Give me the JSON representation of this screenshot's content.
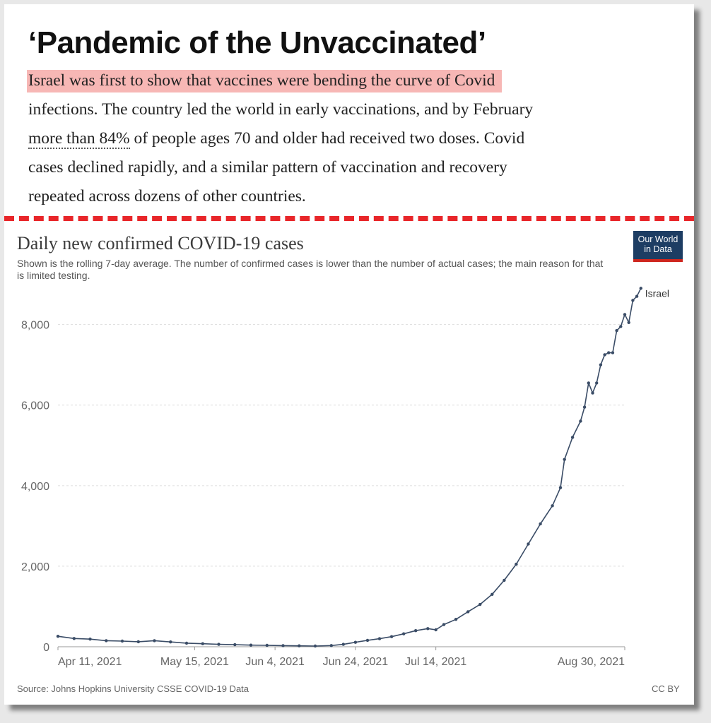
{
  "article": {
    "headline": "‘Pandemic of the Unvaccinated’",
    "lines": {
      "l1": "Israel was first to show that vaccines were bending the curve of Covid",
      "l2": "infections. The country led the world in early vaccinations, and by February",
      "l3_link": "more than 84%",
      "l3_rest": " of people ages 70 and older had received two doses. Covid",
      "l4": "cases declined rapidly, and a similar pattern of vaccination and recovery",
      "l5": "repeated across dozens of other countries."
    },
    "highlight_color": "#f7b7b5"
  },
  "divider_color": "#e8262a",
  "logo": {
    "line1": "Our World",
    "line2": "in Data",
    "bg": "#1d3d63",
    "accent": "#ce261e"
  },
  "footer": {
    "source": "Source: Johns Hopkins University CSSE COVID-19 Data",
    "license": "CC BY"
  },
  "chart_data": {
    "type": "line",
    "title": "Daily new confirmed COVID-19 cases",
    "subtitle": "Shown is the rolling 7-day average. The number of confirmed cases is lower than the number of actual cases; the main reason for that is limited testing.",
    "xlabel": "",
    "ylabel": "",
    "xlim": [
      "2021-04-11",
      "2021-08-30"
    ],
    "ylim": [
      0,
      8800
    ],
    "x_ticks": [
      {
        "date": "2021-04-11",
        "label": "Apr 11, 2021"
      },
      {
        "date": "2021-05-15",
        "label": "May 15, 2021"
      },
      {
        "date": "2021-06-04",
        "label": "Jun 4, 2021"
      },
      {
        "date": "2021-06-24",
        "label": "Jun 24, 2021"
      },
      {
        "date": "2021-07-14",
        "label": "Jul 14, 2021"
      },
      {
        "date": "2021-08-30",
        "label": "Aug 30, 2021"
      }
    ],
    "y_ticks": [
      {
        "value": 0,
        "label": "0"
      },
      {
        "value": 2000,
        "label": "2,000"
      },
      {
        "value": 4000,
        "label": "4,000"
      },
      {
        "value": 6000,
        "label": "6,000"
      },
      {
        "value": 8000,
        "label": "8,000"
      }
    ],
    "grid": "horizontal dashed",
    "color": "#3a4c66",
    "series": [
      {
        "name": "Israel",
        "points": [
          [
            "2021-04-11",
            260
          ],
          [
            "2021-04-15",
            205
          ],
          [
            "2021-04-19",
            190
          ],
          [
            "2021-04-23",
            150
          ],
          [
            "2021-04-27",
            140
          ],
          [
            "2021-05-01",
            125
          ],
          [
            "2021-05-05",
            150
          ],
          [
            "2021-05-09",
            120
          ],
          [
            "2021-05-13",
            90
          ],
          [
            "2021-05-17",
            75
          ],
          [
            "2021-05-21",
            60
          ],
          [
            "2021-05-25",
            50
          ],
          [
            "2021-05-29",
            40
          ],
          [
            "2021-06-02",
            35
          ],
          [
            "2021-06-06",
            28
          ],
          [
            "2021-06-10",
            22
          ],
          [
            "2021-06-14",
            18
          ],
          [
            "2021-06-18",
            30
          ],
          [
            "2021-06-21",
            60
          ],
          [
            "2021-06-24",
            110
          ],
          [
            "2021-06-27",
            160
          ],
          [
            "2021-06-30",
            200
          ],
          [
            "2021-07-03",
            250
          ],
          [
            "2021-07-06",
            320
          ],
          [
            "2021-07-09",
            400
          ],
          [
            "2021-07-12",
            450
          ],
          [
            "2021-07-14",
            420
          ],
          [
            "2021-07-16",
            550
          ],
          [
            "2021-07-19",
            680
          ],
          [
            "2021-07-22",
            870
          ],
          [
            "2021-07-25",
            1050
          ],
          [
            "2021-07-28",
            1300
          ],
          [
            "2021-07-31",
            1650
          ],
          [
            "2021-08-03",
            2050
          ],
          [
            "2021-08-06",
            2550
          ],
          [
            "2021-08-09",
            3050
          ],
          [
            "2021-08-12",
            3500
          ],
          [
            "2021-08-14",
            3950
          ],
          [
            "2021-08-15",
            4650
          ],
          [
            "2021-08-17",
            5200
          ],
          [
            "2021-08-19",
            5600
          ],
          [
            "2021-08-20",
            5950
          ],
          [
            "2021-08-21",
            6550
          ],
          [
            "2021-08-22",
            6300
          ],
          [
            "2021-08-23",
            6550
          ],
          [
            "2021-08-24",
            7000
          ],
          [
            "2021-08-25",
            7250
          ],
          [
            "2021-08-26",
            7300
          ],
          [
            "2021-08-27",
            7300
          ],
          [
            "2021-08-28",
            7850
          ],
          [
            "2021-08-29",
            7950
          ],
          [
            "2021-08-30",
            8250
          ],
          [
            "2021-08-31",
            8050
          ],
          [
            "2021-09-01",
            8600
          ],
          [
            "2021-09-02",
            8700
          ],
          [
            "2021-09-03",
            8900
          ]
        ]
      }
    ]
  }
}
